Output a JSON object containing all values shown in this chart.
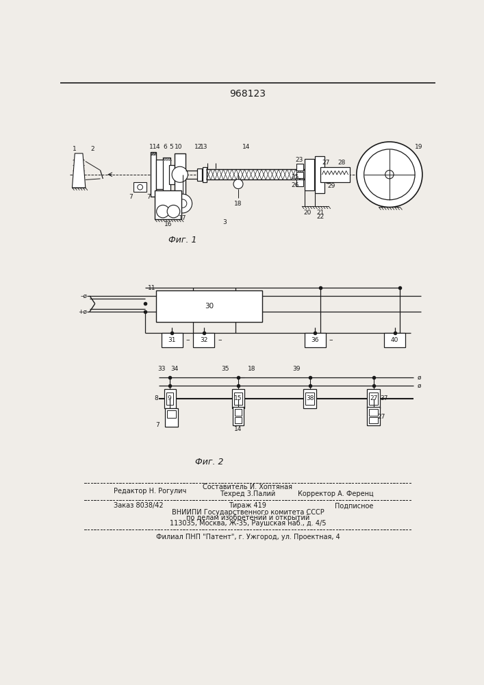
{
  "patent_number": "968123",
  "fig1_caption": "Фиг. 1",
  "fig2_caption": "Фиг. 2",
  "footer_editor": "Редактор Н. Рогулич",
  "footer_author": "Составитель И. Хоптяная",
  "footer_tech": "Техред 3.Палий",
  "footer_corrector": "Корректор А. Ференц",
  "footer_order": "Заказ 8038/42",
  "footer_tirazh": "Тираж 419",
  "footer_podp": "Подписное",
  "footer_vniip1": "ВНИИПИ Государственного комитета СССР",
  "footer_vniip2": "по делам изобретений и открытий",
  "footer_vniip3": "113035, Москва, Ж-35, Раушская наб., д. 4/5",
  "footer_filial": "Филиал ПНП \"Патент\", г. Ужгород, ул. Проектная, 4",
  "bg_color": "#f0ede8",
  "line_color": "#1a1a1a",
  "text_color": "#1a1a1a"
}
